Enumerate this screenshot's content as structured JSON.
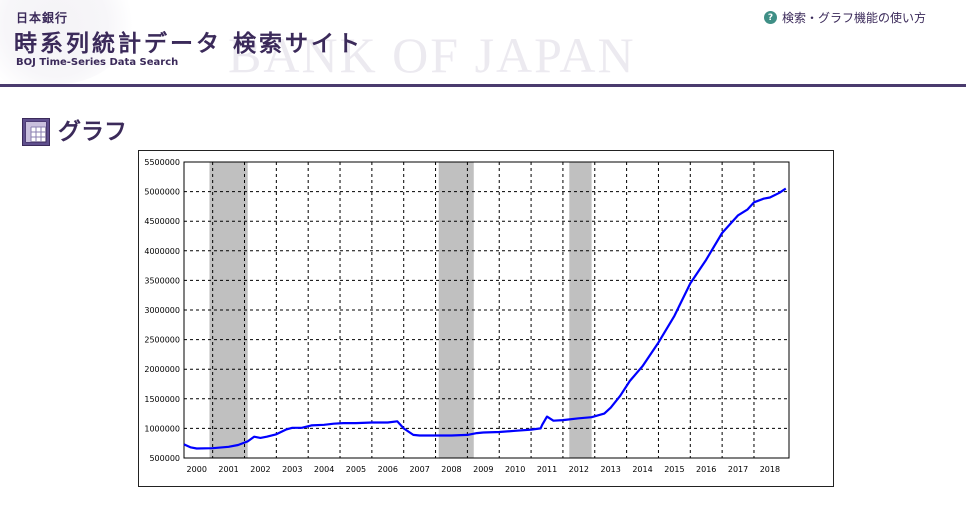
{
  "header": {
    "bank_name": "日本銀行",
    "site_title": "時系列統計データ 検索サイト",
    "site_subtitle": "BOJ Time-Series Data Search",
    "background_mark": "BANK OF JAPAN",
    "help_link": "検索・グラフ機能の使い方",
    "help_icon": "question-icon"
  },
  "section": {
    "title": "グラフ",
    "icon": "graph-icon"
  },
  "colors": {
    "brand": "#3b2a5a",
    "line": "#0000ff",
    "recession": "#c0c0c0",
    "help_icon": "#3f8f86"
  },
  "chart_data": {
    "type": "line",
    "grid": true,
    "ylim": [
      500000,
      5500000
    ],
    "xlim": [
      1999.6,
      2018.6
    ],
    "y_ticks": [
      500000,
      1000000,
      1500000,
      2000000,
      2500000,
      3000000,
      3500000,
      4000000,
      4500000,
      5000000,
      5500000
    ],
    "x_ticks": [
      "2000",
      "2001",
      "2002",
      "2003",
      "2004",
      "2005",
      "2006",
      "2007",
      "2008",
      "2009",
      "2010",
      "2011",
      "2012",
      "2013",
      "2014",
      "2015",
      "2016",
      "2017",
      "2018"
    ],
    "shaded_ranges": [
      [
        2000.4,
        2001.6
      ],
      [
        2007.6,
        2008.7
      ],
      [
        2011.7,
        2012.4
      ]
    ],
    "series": [
      {
        "x": [
          1999.6,
          1999.8,
          2000.0,
          2000.5,
          2001.0,
          2001.3,
          2001.6,
          2001.8,
          2002.0,
          2002.2,
          2002.5,
          2002.8,
          2003.0,
          2003.3,
          2003.6,
          2004.0,
          2004.3,
          2004.6,
          2005.0,
          2005.5,
          2006.0,
          2006.3,
          2006.5,
          2006.8,
          2007.0,
          2007.5,
          2008.0,
          2008.5,
          2008.8,
          2009.0,
          2009.5,
          2010.0,
          2010.5,
          2010.8,
          2010.85,
          2011.0,
          2011.2,
          2011.5,
          2012.0,
          2012.4,
          2012.8,
          2013.0,
          2013.3,
          2013.6,
          2014.0,
          2014.5,
          2015.0,
          2015.5,
          2016.0,
          2016.5,
          2017.0,
          2017.3,
          2017.5,
          2017.8,
          2018.0,
          2018.3,
          2018.5
        ],
        "values": [
          730000,
          680000,
          660000,
          665000,
          690000,
          720000,
          780000,
          860000,
          840000,
          860000,
          900000,
          980000,
          1010000,
          1010000,
          1050000,
          1060000,
          1080000,
          1090000,
          1090000,
          1100000,
          1100000,
          1120000,
          1000000,
          890000,
          880000,
          880000,
          880000,
          890000,
          920000,
          930000,
          940000,
          960000,
          980000,
          1000000,
          1060000,
          1200000,
          1130000,
          1140000,
          1170000,
          1190000,
          1250000,
          1350000,
          1550000,
          1800000,
          2050000,
          2450000,
          2900000,
          3450000,
          3850000,
          4300000,
          4600000,
          4700000,
          4820000,
          4880000,
          4900000,
          4980000,
          5050000
        ]
      }
    ]
  }
}
